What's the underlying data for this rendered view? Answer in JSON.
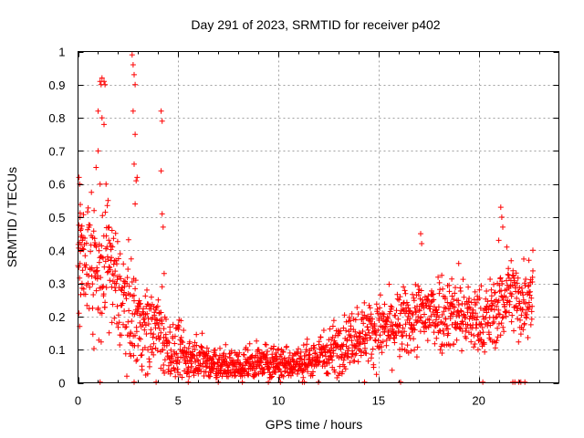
{
  "chart_data": {
    "type": "scatter",
    "title": "Day 291 of 2023, SRMTID for receiver p402",
    "xlabel": "GPS time / hours",
    "ylabel": "SRMTID / TECUs",
    "xlim": [
      0,
      24
    ],
    "ylim": [
      0,
      1
    ],
    "xticks": [
      0,
      5,
      10,
      15,
      20
    ],
    "xtick_labels": [
      "0",
      "5",
      "10",
      "15",
      "20"
    ],
    "yticks": [
      0,
      0.1,
      0.2,
      0.3,
      0.4,
      0.5,
      0.6,
      0.7,
      0.8,
      0.9,
      1
    ],
    "ytick_labels": [
      "0",
      "0.1",
      "0.2",
      "0.3",
      "0.4",
      "0.5",
      "0.6",
      "0.7",
      "0.8",
      "0.9",
      "1"
    ],
    "grid": true,
    "marker": "+",
    "color": "#ff0000",
    "trend": [
      [
        0.0,
        0.4
      ],
      [
        0.3,
        0.42
      ],
      [
        0.7,
        0.35
      ],
      [
        1.0,
        0.3
      ],
      [
        1.5,
        0.34
      ],
      [
        2.0,
        0.28
      ],
      [
        2.5,
        0.22
      ],
      [
        3.0,
        0.19
      ],
      [
        3.5,
        0.16
      ],
      [
        4.0,
        0.17
      ],
      [
        4.5,
        0.1
      ],
      [
        5.0,
        0.08
      ],
      [
        5.5,
        0.07
      ],
      [
        6.0,
        0.08
      ],
      [
        7.0,
        0.05
      ],
      [
        8.0,
        0.05
      ],
      [
        9.0,
        0.06
      ],
      [
        10.0,
        0.06
      ],
      [
        11.0,
        0.06
      ],
      [
        12.0,
        0.08
      ],
      [
        13.0,
        0.11
      ],
      [
        14.0,
        0.15
      ],
      [
        15.0,
        0.16
      ],
      [
        16.0,
        0.17
      ],
      [
        17.0,
        0.2
      ],
      [
        18.0,
        0.22
      ],
      [
        19.0,
        0.21
      ],
      [
        20.0,
        0.18
      ],
      [
        21.0,
        0.22
      ],
      [
        21.5,
        0.28
      ],
      [
        22.0,
        0.24
      ],
      [
        22.7,
        0.28
      ]
    ],
    "spread": [
      [
        0.0,
        0.1
      ],
      [
        2.0,
        0.08
      ],
      [
        4.5,
        0.05
      ],
      [
        6.0,
        0.03
      ],
      [
        11.0,
        0.025
      ],
      [
        13.0,
        0.04
      ],
      [
        16.0,
        0.05
      ],
      [
        18.0,
        0.06
      ],
      [
        20.0,
        0.05
      ],
      [
        22.7,
        0.06
      ]
    ],
    "points": [
      [
        0.05,
        0.62
      ],
      [
        0.08,
        0.6
      ],
      [
        0.1,
        0.5
      ],
      [
        0.12,
        0.46
      ],
      [
        0.15,
        0.44
      ],
      [
        0.1,
        0.36
      ],
      [
        0.2,
        0.3
      ],
      [
        0.05,
        0.21
      ],
      [
        0.08,
        0.17
      ],
      [
        1.0,
        0.82
      ],
      [
        1.1,
        0.91
      ],
      [
        1.15,
        0.9
      ],
      [
        1.2,
        0.92
      ],
      [
        1.3,
        0.91
      ],
      [
        1.35,
        0.9
      ],
      [
        1.2,
        0.8
      ],
      [
        1.3,
        0.78
      ],
      [
        1.0,
        0.7
      ],
      [
        0.9,
        0.65
      ],
      [
        1.1,
        0.6
      ],
      [
        1.4,
        0.6
      ],
      [
        1.5,
        0.55
      ],
      [
        1.55,
        0.47
      ],
      [
        1.7,
        0.46
      ],
      [
        0.8,
        0.52
      ],
      [
        2.7,
        0.99
      ],
      [
        2.75,
        0.96
      ],
      [
        2.8,
        0.93
      ],
      [
        2.85,
        0.9
      ],
      [
        2.75,
        0.82
      ],
      [
        2.85,
        0.75
      ],
      [
        2.8,
        0.66
      ],
      [
        2.9,
        0.61
      ],
      [
        2.95,
        0.62
      ],
      [
        2.85,
        0.54
      ],
      [
        4.15,
        0.82
      ],
      [
        4.2,
        0.79
      ],
      [
        4.15,
        0.64
      ],
      [
        4.2,
        0.51
      ],
      [
        4.25,
        0.47
      ],
      [
        4.3,
        0.33
      ],
      [
        4.2,
        0.29
      ],
      [
        17.1,
        0.45
      ],
      [
        17.15,
        0.42
      ],
      [
        19.0,
        0.36
      ],
      [
        21.1,
        0.53
      ],
      [
        21.15,
        0.5
      ],
      [
        21.2,
        0.47
      ],
      [
        21.0,
        0.43
      ],
      [
        21.4,
        0.41
      ],
      [
        22.7,
        0.4
      ],
      [
        22.5,
        0.37
      ]
    ],
    "zero_points": [
      1.1,
      2.8,
      3.9,
      5.5,
      7.0,
      8.2,
      9.5,
      10.1,
      11.2,
      11.3,
      12.0,
      14.3,
      16.1,
      20.2,
      21.7,
      21.8,
      22.0,
      22.1,
      22.3
    ]
  }
}
